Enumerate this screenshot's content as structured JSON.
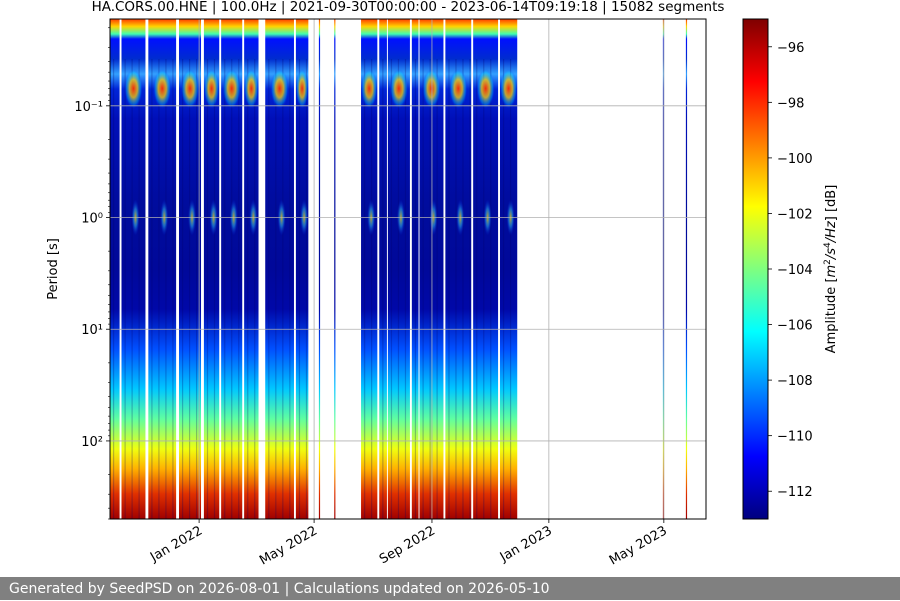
{
  "chart_data": {
    "type": "heatmap",
    "title": "HA.CORS.00.HNE | 100.0Hz | 2021-09-30T00:00:00 - 2023-06-14T09:19:18 | 15082 segments",
    "ylabel": "Period [s]",
    "yscale": "log",
    "y_inverted": true,
    "ylim": [
      0.0167,
      500
    ],
    "ytick_labels": [
      {
        "value": 0.1,
        "label": "10⁻¹"
      },
      {
        "value": 1,
        "label": "10⁰"
      },
      {
        "value": 10,
        "label": "10¹"
      },
      {
        "value": 100,
        "label": "10²"
      }
    ],
    "xlim": [
      "2021-09-30",
      "2023-06-14"
    ],
    "xtick_labels": [
      {
        "date": "2022-01-01",
        "label": "Jan 2022"
      },
      {
        "date": "2022-05-01",
        "label": "May 2022"
      },
      {
        "date": "2022-09-01",
        "label": "Sep 2022"
      },
      {
        "date": "2023-01-01",
        "label": "Jan 2023"
      },
      {
        "date": "2023-05-01",
        "label": "May 2023"
      }
    ],
    "grid": true,
    "colormap": "jet",
    "colorbar": {
      "label_parts": {
        "prefix": "Amplitude [",
        "m": "m",
        "exp1": "2",
        "slash1": "/s",
        "exp2": "4",
        "slash2": "/Hz",
        "suffix": "] [dB]"
      },
      "range": [
        -113,
        -95
      ],
      "ticks": [
        {
          "value": -96,
          "label": "−96"
        },
        {
          "value": -98,
          "label": "−98"
        },
        {
          "value": -100,
          "label": "−100"
        },
        {
          "value": -102,
          "label": "−102"
        },
        {
          "value": -104,
          "label": "−104"
        },
        {
          "value": -106,
          "label": "−106"
        },
        {
          "value": -108,
          "label": "−108"
        },
        {
          "value": -110,
          "label": "−110"
        },
        {
          "value": -112,
          "label": "−112"
        }
      ]
    },
    "data_blocks": [
      {
        "start": "2021-09-30",
        "end": "2021-10-10"
      },
      {
        "start": "2021-10-12",
        "end": "2021-11-06"
      },
      {
        "start": "2021-11-09",
        "end": "2021-12-08"
      },
      {
        "start": "2021-12-11",
        "end": "2022-01-03"
      },
      {
        "start": "2022-01-06",
        "end": "2022-01-22"
      },
      {
        "start": "2022-01-24",
        "end": "2022-02-15"
      },
      {
        "start": "2022-02-17",
        "end": "2022-03-04"
      },
      {
        "start": "2022-03-11",
        "end": "2022-04-10"
      },
      {
        "start": "2022-04-12",
        "end": "2022-04-25"
      },
      {
        "start": "2022-05-06",
        "end": "2022-05-07"
      },
      {
        "start": "2022-05-22",
        "end": "2022-05-23"
      },
      {
        "start": "2022-06-19",
        "end": "2022-07-06"
      },
      {
        "start": "2022-07-08",
        "end": "2022-07-16"
      },
      {
        "start": "2022-07-17",
        "end": "2022-08-09"
      },
      {
        "start": "2022-08-11",
        "end": "2022-08-18"
      },
      {
        "start": "2022-08-19",
        "end": "2022-09-13"
      },
      {
        "start": "2022-09-15",
        "end": "2022-10-12"
      },
      {
        "start": "2022-10-14",
        "end": "2022-11-09"
      },
      {
        "start": "2022-11-11",
        "end": "2022-11-29"
      },
      {
        "start": "2023-04-30",
        "end": "2023-05-01"
      },
      {
        "start": "2023-05-24",
        "end": "2023-05-25"
      }
    ]
  },
  "footer_text": "Generated by SeedPSD on 2026-08-01 | Calculations updated on 2026-05-10"
}
